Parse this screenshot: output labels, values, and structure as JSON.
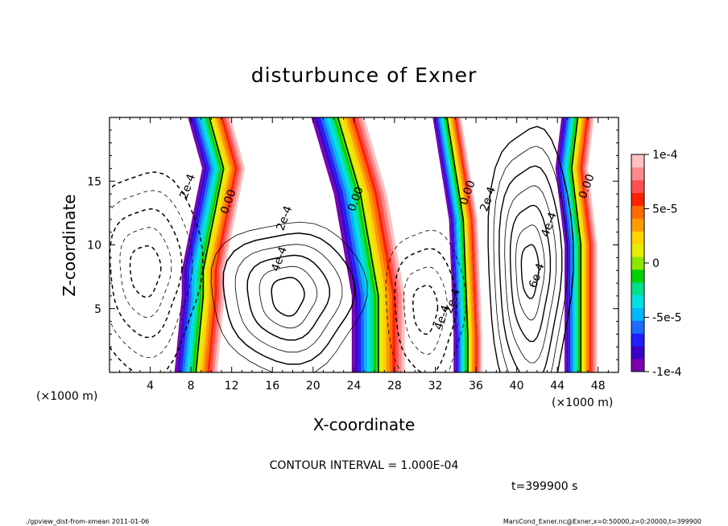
{
  "chart_data": {
    "type": "heatmap",
    "title": "disturbunce of Exner",
    "xlabel": "X-coordinate",
    "ylabel": "Z-coordinate",
    "x_unit": "(×1000 m)",
    "x_unit_right": "(×1000 m)",
    "xlim": [
      0,
      50
    ],
    "ylim": [
      0,
      20
    ],
    "x_ticks": [
      4,
      8,
      12,
      16,
      20,
      24,
      28,
      32,
      36,
      40,
      44,
      48
    ],
    "y_ticks": [
      5,
      10,
      15
    ],
    "colorbar": {
      "range": [
        -0.0001,
        0.0001
      ],
      "tick_values": [
        0.0001,
        5e-05,
        0,
        -5e-05,
        -0.0001
      ],
      "tick_labels": [
        "1e-4",
        "5e-5",
        "0",
        "-5e-5",
        "-1e-4"
      ],
      "colors": [
        "#7a00b0",
        "#3a00c8",
        "#1f1fff",
        "#1e6cff",
        "#00b8ff",
        "#00e0e0",
        "#00e08a",
        "#00d200",
        "#8ce600",
        "#e6ee00",
        "#ffd200",
        "#ff9a00",
        "#ff6a00",
        "#ff2200",
        "#ff5050",
        "#ff8a8a",
        "#ffc0c0"
      ]
    },
    "contour_labels": [
      {
        "text": "2e-4",
        "x": 8,
        "z": 14.5
      },
      {
        "text": "0.00",
        "x": 12,
        "z": 13.3
      },
      {
        "text": "2e-4",
        "x": 17.5,
        "z": 12
      },
      {
        "text": "4e-4",
        "x": 17,
        "z": 8.8
      },
      {
        "text": "0.00",
        "x": 24.5,
        "z": 13.5
      },
      {
        "text": "0.00",
        "x": 35.5,
        "z": 14.0
      },
      {
        "text": "2e-4",
        "x": 37.5,
        "z": 13.5
      },
      {
        "text": "4e-4",
        "x": 43.5,
        "z": 11.5
      },
      {
        "text": "6e-4",
        "x": 42.3,
        "z": 7.5
      },
      {
        "text": "0.00",
        "x": 47.2,
        "z": 14.5
      },
      {
        "text": "2e-4",
        "x": 34,
        "z": 5.5
      },
      {
        "text": "4e-4",
        "x": 33,
        "z": 4.2
      }
    ],
    "annotations": {
      "contour_interval": "CONTOUR INTERVAL = 1.000E-04",
      "time": "t=399900 s",
      "footer_left": "./gpview_dist-from-xmean  2011-01-06",
      "footer_right": "MarsCond_Exner.nc@Exner,x=0:50000,z=0:20000,t=399900"
    }
  }
}
